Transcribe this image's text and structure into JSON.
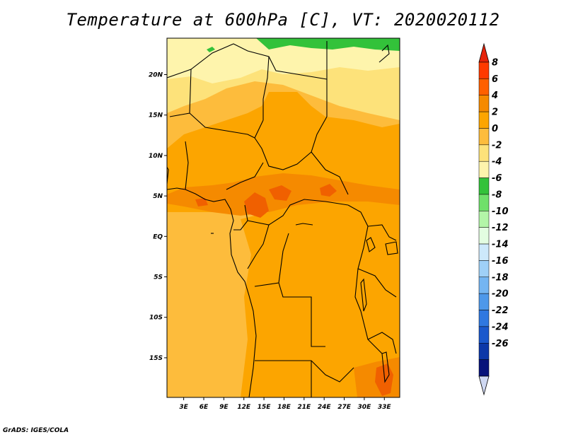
{
  "title": "Temperature at 600hPa [C], VT: 2020020112",
  "credit": "GrADS: IGES/COLA",
  "axes": {
    "lon_ticks": [
      {
        "value": 3,
        "label": "3E"
      },
      {
        "value": 6,
        "label": "6E"
      },
      {
        "value": 9,
        "label": "9E"
      },
      {
        "value": 12,
        "label": "12E"
      },
      {
        "value": 15,
        "label": "15E"
      },
      {
        "value": 18,
        "label": "18E"
      },
      {
        "value": 21,
        "label": "21E"
      },
      {
        "value": 24,
        "label": "24E"
      },
      {
        "value": 27,
        "label": "27E"
      },
      {
        "value": 30,
        "label": "30E"
      },
      {
        "value": 33,
        "label": "33E"
      }
    ],
    "lat_ticks": [
      {
        "value": 20,
        "label": "20N"
      },
      {
        "value": 15,
        "label": "15N"
      },
      {
        "value": 10,
        "label": "10N"
      },
      {
        "value": 5,
        "label": "5N"
      },
      {
        "value": 0,
        "label": "EQ"
      },
      {
        "value": -5,
        "label": "5S"
      },
      {
        "value": -10,
        "label": "10S"
      },
      {
        "value": -15,
        "label": "15S"
      }
    ],
    "lon_range": [
      0.5,
      35.3
    ],
    "lat_range": [
      -19.9,
      24.5
    ]
  },
  "colorbar": {
    "labels": [
      "8",
      "6",
      "4",
      "2",
      "0",
      "-2",
      "-4",
      "-6",
      "-8",
      "-10",
      "-12",
      "-14",
      "-16",
      "-18",
      "-20",
      "-22",
      "-24",
      "-26"
    ],
    "colors_top_to_bottom": [
      "#ff3a00",
      "#ff6000",
      "#f58a00",
      "#fca500",
      "#fdbc3c",
      "#fde27a",
      "#fef4ac",
      "#33c23a",
      "#6fe06a",
      "#b3f5a8",
      "#e3fde1",
      "#cde9fb",
      "#9fd0f7",
      "#74b5f2",
      "#4e98ea",
      "#2f78e0",
      "#1a58cc",
      "#0c38a8",
      "#08137a"
    ],
    "top_arrow_color": "#e6230a",
    "bottom_arrow_color": "#cfd8f2"
  },
  "field_colors": {
    "band_lt_m4": "#33c23a",
    "band_m4_m2": "#fef4ac",
    "band_m2_0": "#fde27a",
    "band_0_2": "#fdbc3c",
    "band_2_4": "#fca500",
    "band_4_6": "#f58a00",
    "band_6_8": "#f06000"
  }
}
